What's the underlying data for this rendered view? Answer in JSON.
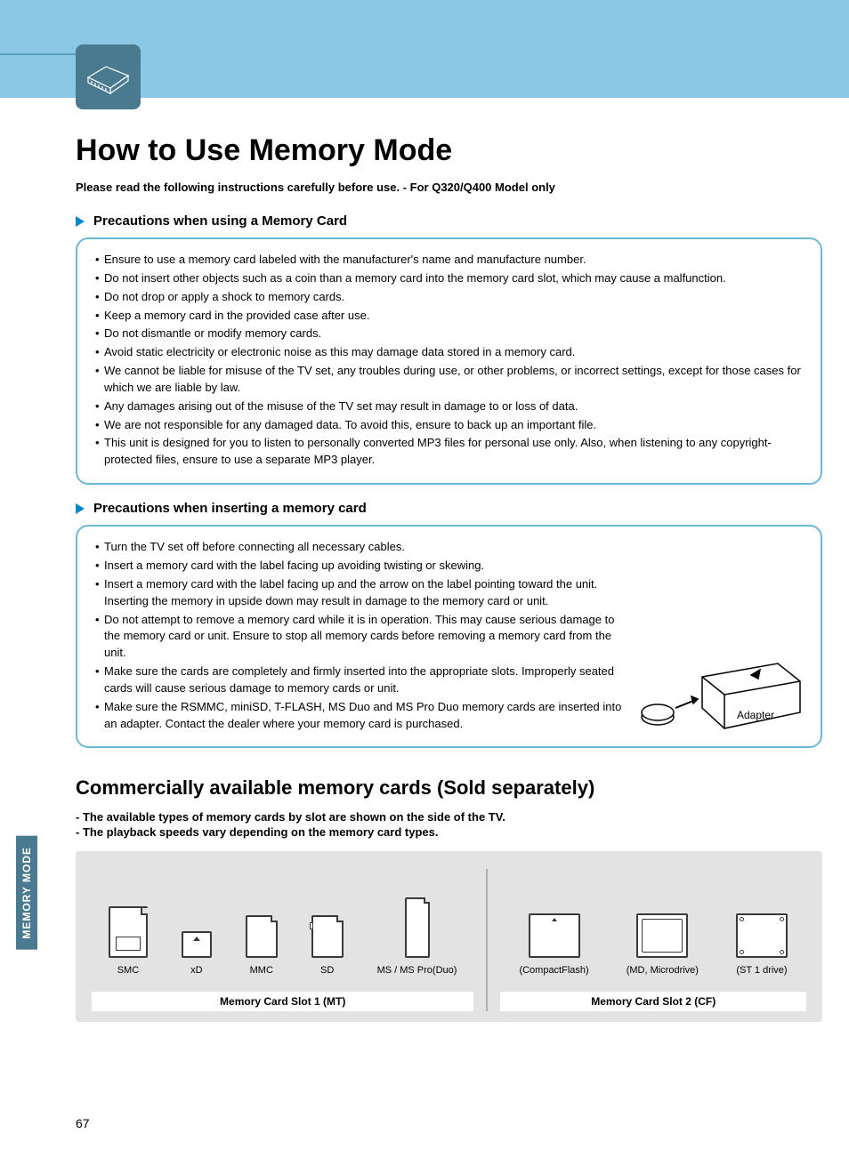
{
  "colors": {
    "banner_bg": "#8ac8e6",
    "icon_box_bg": "#4a7a8f",
    "arrow_bullet": "#0088cc",
    "info_box_border": "#6bb8d9",
    "diagram_bg": "#e3e3e3",
    "side_tab_bg": "#4a7a8f",
    "card_outline": "#3a3a3a"
  },
  "page_title": "How to Use Memory Mode",
  "subtitle": "Please read the following instructions carefully before use.  - For Q320/Q400 Model only",
  "section1": {
    "header": "Precautions when using a Memory Card",
    "items": [
      "Ensure to use a memory card labeled with the manufacturer's name and manufacture number.",
      "Do not insert other objects such as a coin than a memory card into the memory card slot, which may cause a malfunction.",
      "Do not drop or apply a shock to memory cards.",
      "Keep a memory card in the provided case after use.",
      "Do not dismantle or modify memory cards.",
      "Avoid static electricity or electronic noise as this may damage data stored in a memory card.",
      "We cannot be liable for misuse of the TV set, any troubles during use, or other problems, or incorrect settings, except for those cases for which we are liable by law.",
      "Any damages arising out of the misuse of the TV set may result in damage to or loss of data.",
      "We are not responsible for any damaged data. To avoid this, ensure to back up an important file.",
      "This unit is designed for you to listen to personally converted MP3 files for personal use only. Also, when listening to any copyright-protected files, ensure to use a separate MP3 player."
    ]
  },
  "section2": {
    "header": "Precautions when inserting a memory card",
    "items": [
      "Turn the TV set off before connecting all necessary cables.",
      "Insert a memory card with the label facing up avoiding twisting or skewing.",
      "Insert a memory card with the label facing up and the arrow on the label pointing toward the unit. Inserting the memory in upside down may result in damage to the memory card or unit.",
      "Do not attempt to remove a memory card while it is in operation. This may cause serious damage to the memory card or unit. Ensure to stop all memory cards before removing a memory card from the unit.",
      "Make sure the cards are completely and firmly inserted into the appropriate slots. Improperly seated cards will cause serious damage to memory cards or unit.",
      "Make sure the RSMMC, miniSD, T-FLASH, MS Duo and MS Pro Duo memory cards are inserted into an adapter. Contact the dealer where your memory card is purchased."
    ],
    "adapter_label": "Adapter"
  },
  "section3": {
    "header": "Commercially available memory cards (Sold separately)",
    "notes": [
      "- The available types of memory cards by slot are shown on the side of the TV.",
      "- The playback speeds vary depending on the memory card types."
    ],
    "slot1": {
      "label": "Memory Card Slot 1 (MT)",
      "cards": [
        "SMC",
        "xD",
        "MMC",
        "SD",
        "MS / MS Pro(Duo)"
      ]
    },
    "slot2": {
      "label": "Memory Card Slot 2 (CF)",
      "cards": [
        "(CompactFlash)",
        "(MD, Microdrive)",
        "(ST 1 drive)"
      ]
    }
  },
  "side_tab": "MEMORY MODE",
  "page_number": "67"
}
